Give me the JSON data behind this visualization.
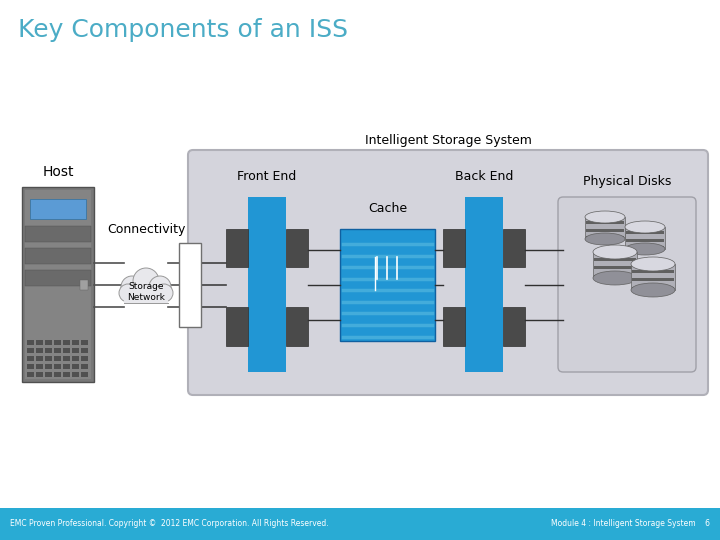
{
  "title": "Key Components of an ISS",
  "title_color": "#4BACC6",
  "title_fontsize": 18,
  "bg_color": "#FFFFFF",
  "footer_bg": "#29ABD4",
  "footer_left": "EMC Proven Professional. Copyright ©  2012 EMC Corporation. All Rights Reserved.",
  "footer_right": "Module 4 : Intelligent Storage System    6",
  "iss_label": "Intelligent Storage System",
  "host_label": "Host",
  "connectivity_label": "Connectivity",
  "storage_network_label": "Storage\nNetwork",
  "front_end_label": "Front End",
  "back_end_label": "Back End",
  "cache_label": "Cache",
  "physical_disks_label": "Physical Disks",
  "blue_color": "#2196D4",
  "iss_fill": "#D4D4DC",
  "iss_edge": "#B0B0B8"
}
